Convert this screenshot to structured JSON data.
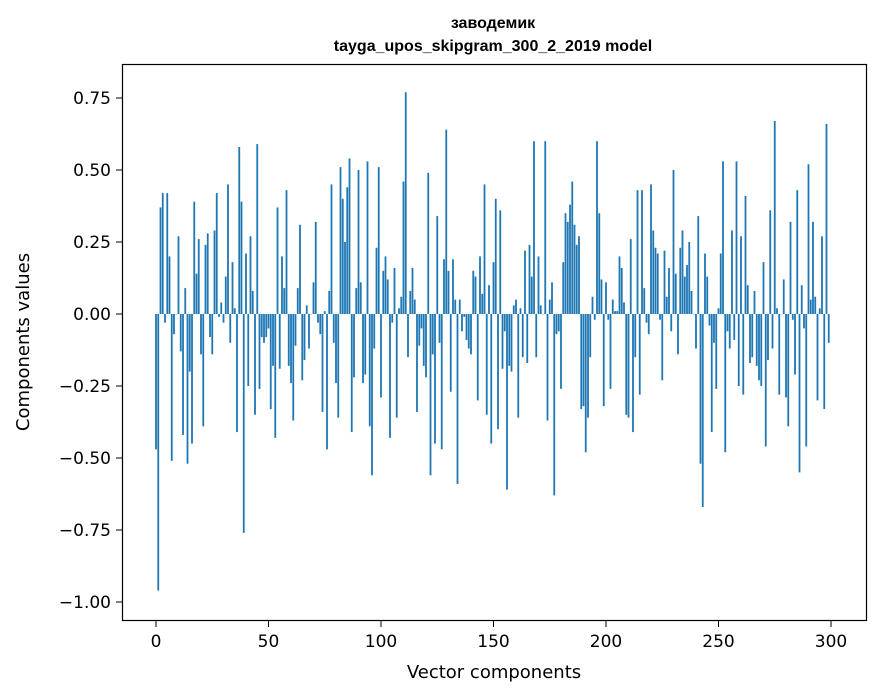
{
  "chart_data": {
    "type": "bar",
    "title_line1": "заводемик",
    "title_line2": "tayga_upos_skipgram_300_2_2019 model",
    "xlabel": "Vector components",
    "ylabel": "Components values",
    "xlim": [
      -13,
      316
    ],
    "ylim": [
      -1.05,
      0.87
    ],
    "xticks": [
      0,
      50,
      100,
      150,
      200,
      250,
      300
    ],
    "yticks": [
      -1.0,
      -0.75,
      -0.5,
      -0.25,
      0.0,
      0.25,
      0.5,
      0.75
    ],
    "ytick_labels": [
      "−1.00",
      "−0.75",
      "−0.50",
      "−0.25",
      "0.00",
      "0.25",
      "0.50",
      "0.75"
    ],
    "bar_color": "#1f77b4",
    "grid": false,
    "values": [
      -0.47,
      -0.96,
      0.37,
      0.42,
      -0.03,
      0.42,
      0.2,
      -0.51,
      -0.07,
      0.0,
      0.27,
      -0.13,
      -0.42,
      0.09,
      -0.52,
      -0.2,
      -0.45,
      0.39,
      0.14,
      0.26,
      -0.14,
      -0.39,
      0.24,
      0.28,
      -0.08,
      -0.14,
      0.29,
      0.42,
      -0.01,
      0.04,
      -0.03,
      0.13,
      0.45,
      -0.1,
      0.18,
      0.02,
      -0.41,
      0.58,
      0.39,
      -0.76,
      0.21,
      -0.25,
      0.27,
      0.08,
      -0.35,
      0.59,
      -0.26,
      -0.08,
      -0.1,
      -0.08,
      -0.05,
      -0.33,
      -0.18,
      -0.43,
      0.37,
      -0.19,
      0.2,
      0.09,
      0.43,
      -0.18,
      -0.24,
      -0.37,
      -0.11,
      0.09,
      0.31,
      -0.23,
      -0.16,
      0.03,
      -0.12,
      0.0,
      0.11,
      0.32,
      -0.03,
      -0.07,
      -0.34,
      0.01,
      -0.47,
      0.08,
      0.45,
      -0.1,
      -0.24,
      -0.36,
      0.51,
      0.4,
      0.25,
      0.44,
      0.54,
      -0.41,
      -0.22,
      0.09,
      0.5,
      0.11,
      -0.24,
      -0.21,
      0.53,
      -0.39,
      -0.56,
      -0.12,
      0.23,
      0.51,
      -0.29,
      0.15,
      0.2,
      0.12,
      -0.43,
      -0.03,
      0.16,
      -0.36,
      0.02,
      0.06,
      0.46,
      0.77,
      -0.15,
      0.08,
      0.16,
      0.05,
      -0.34,
      -0.11,
      -0.05,
      -0.18,
      -0.22,
      0.49,
      -0.56,
      -0.14,
      -0.45,
      0.34,
      -0.1,
      -0.47,
      0.19,
      0.64,
      0.15,
      -0.27,
      0.19,
      0.05,
      -0.59,
      0.05,
      -0.06,
      -0.01,
      -0.09,
      -0.12,
      -0.14,
      0.15,
      0.13,
      -0.3,
      0.2,
      0.07,
      0.45,
      -0.35,
      0.1,
      -0.45,
      0.18,
      0.4,
      -0.4,
      0.36,
      -0.19,
      -0.06,
      -0.61,
      -0.18,
      -0.2,
      0.03,
      0.05,
      -0.36,
      0.02,
      -0.15,
      0.22,
      -0.17,
      0.24,
      0.13,
      0.6,
      -0.15,
      0.2,
      0.03,
      0.0,
      0.6,
      -0.37,
      0.05,
      0.11,
      -0.63,
      -0.07,
      -0.06,
      -0.26,
      0.18,
      0.35,
      0.32,
      0.38,
      0.46,
      0.31,
      0.24,
      0.27,
      -0.33,
      -0.32,
      -0.48,
      -0.36,
      -0.15,
      0.06,
      -0.02,
      0.6,
      0.35,
      0.12,
      -0.32,
      0.11,
      -0.02,
      -0.26,
      0.05,
      0.01,
      0.01,
      0.2,
      0.16,
      0.04,
      -0.35,
      -0.36,
      0.26,
      -0.41,
      -0.15,
      0.43,
      -0.28,
      0.43,
      0.09,
      -0.03,
      -0.07,
      0.45,
      0.29,
      0.23,
      0.21,
      -0.02,
      -0.23,
      0.22,
      0.06,
      0.16,
      -0.06,
      0.5,
      0.14,
      -0.14,
      0.23,
      0.29,
      0.13,
      0.17,
      0.25,
      0.08,
      0.0,
      -0.12,
      0.34,
      -0.52,
      -0.67,
      0.21,
      0.13,
      -0.04,
      -0.41,
      -0.1,
      -0.26,
      0.02,
      0.21,
      0.53,
      -0.48,
      -0.06,
      -0.12,
      0.29,
      -0.09,
      0.53,
      -0.25,
      0.27,
      -0.28,
      0.41,
      0.1,
      -0.17,
      -0.15,
      0.08,
      -0.18,
      -0.23,
      -0.25,
      0.18,
      -0.46,
      -0.16,
      0.36,
      -0.12,
      0.67,
      0.02,
      -0.28,
      0.0,
      0.12,
      -0.29,
      -0.39,
      0.32,
      -0.02,
      -0.21,
      0.43,
      -0.55,
      0.1,
      -0.05,
      -0.46,
      0.52,
      0.05,
      0.32,
      0.06,
      -0.3,
      0.02,
      0.27,
      -0.33,
      0.66,
      -0.1
    ]
  }
}
